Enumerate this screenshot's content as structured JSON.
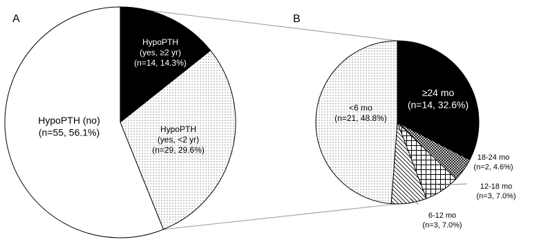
{
  "chart_data": [
    {
      "type": "pie",
      "panel": "A",
      "categories": [
        [
          "HypoPTH",
          "(yes, ≥2 yr)"
        ],
        [
          "HypoPTH",
          "(yes, <2 yr)"
        ],
        [
          "HypoPTH (no)"
        ]
      ],
      "values": [
        14.3,
        29.6,
        56.1
      ],
      "value_labels": [
        "(n=14, 14.3%)",
        "(n=29, 29.6%)",
        "(n=55, 56.1%)"
      ],
      "colors": [
        "#000000",
        "#ffffff",
        "#ffffff"
      ],
      "hatch": [
        "solid",
        "dots",
        "solid"
      ]
    },
    {
      "type": "pie",
      "panel": "B",
      "categories": [
        [
          "≥24 mo"
        ],
        [
          "18-24 mo"
        ],
        [
          "12-18 mo"
        ],
        [
          "6-12 mo"
        ],
        [
          "<6 mo"
        ]
      ],
      "values": [
        32.6,
        4.6,
        7.0,
        7.0,
        48.8
      ],
      "value_labels": [
        "(n=14, 32.6%)",
        "(n=2, 4.6%)",
        "(n=3, 7.0%)",
        "(n=3, 7.0%)",
        "(n=21, 48.8%)"
      ],
      "colors": [
        "#000000",
        "#ffffff",
        "#ffffff",
        "#ffffff",
        "#ffffff"
      ],
      "hatch": [
        "solid",
        "crosshatch",
        "grid",
        "diagonal",
        "dots"
      ]
    }
  ]
}
